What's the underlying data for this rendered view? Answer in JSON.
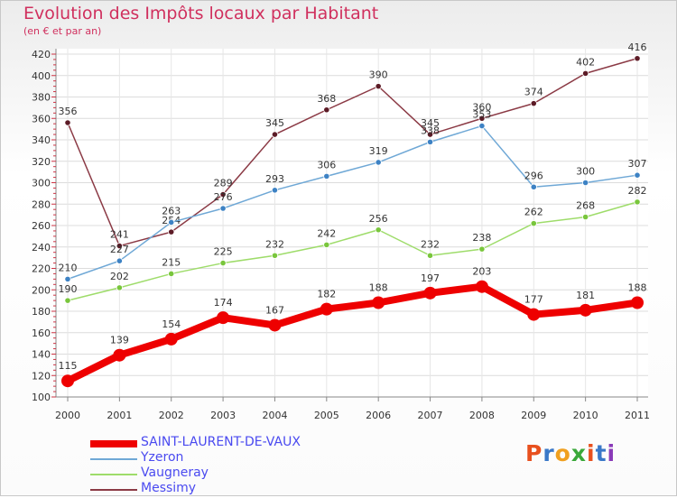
{
  "header": {
    "title": "Evolution des Impôts locaux par Habitant",
    "subtitle": "(en € et par an)"
  },
  "logo": {
    "text": "Proxiti",
    "letter_colors": [
      "#e8501e",
      "#3a78c8",
      "#f0a020",
      "#3aa83a",
      "#e8501e",
      "#3a78c8",
      "#8a3ab8"
    ]
  },
  "chart_data": {
    "type": "line",
    "x": [
      "2000",
      "2001",
      "2002",
      "2003",
      "2004",
      "2005",
      "2006",
      "2007",
      "2008",
      "2009",
      "2010",
      "2011"
    ],
    "ylim": [
      100,
      420
    ],
    "yticks": [
      "100",
      "120",
      "140",
      "160",
      "180",
      "200",
      "220",
      "240",
      "260",
      "280",
      "300",
      "320",
      "340",
      "360",
      "380",
      "400",
      "420"
    ],
    "grid": true,
    "legend_position": "bottom-left",
    "series": [
      {
        "name": "SAINT-LAURENT-DE-VAUX",
        "color": "#ee0000",
        "values": [
          115,
          139,
          154,
          174,
          167,
          182,
          188,
          197,
          203,
          177,
          181,
          188
        ]
      },
      {
        "name": "Yzeron",
        "color": "#6fa8d6",
        "values": [
          210,
          227,
          263,
          276,
          293,
          306,
          319,
          338,
          353,
          296,
          300,
          307
        ]
      },
      {
        "name": "Vaugneray",
        "color": "#9edc6a",
        "values": [
          190,
          202,
          215,
          225,
          232,
          242,
          256,
          232,
          238,
          262,
          268,
          282
        ]
      },
      {
        "name": "Messimy",
        "color": "#8b3a45",
        "values": [
          356,
          241,
          254,
          289,
          345,
          368,
          390,
          345,
          360,
          374,
          402,
          416
        ]
      }
    ]
  }
}
